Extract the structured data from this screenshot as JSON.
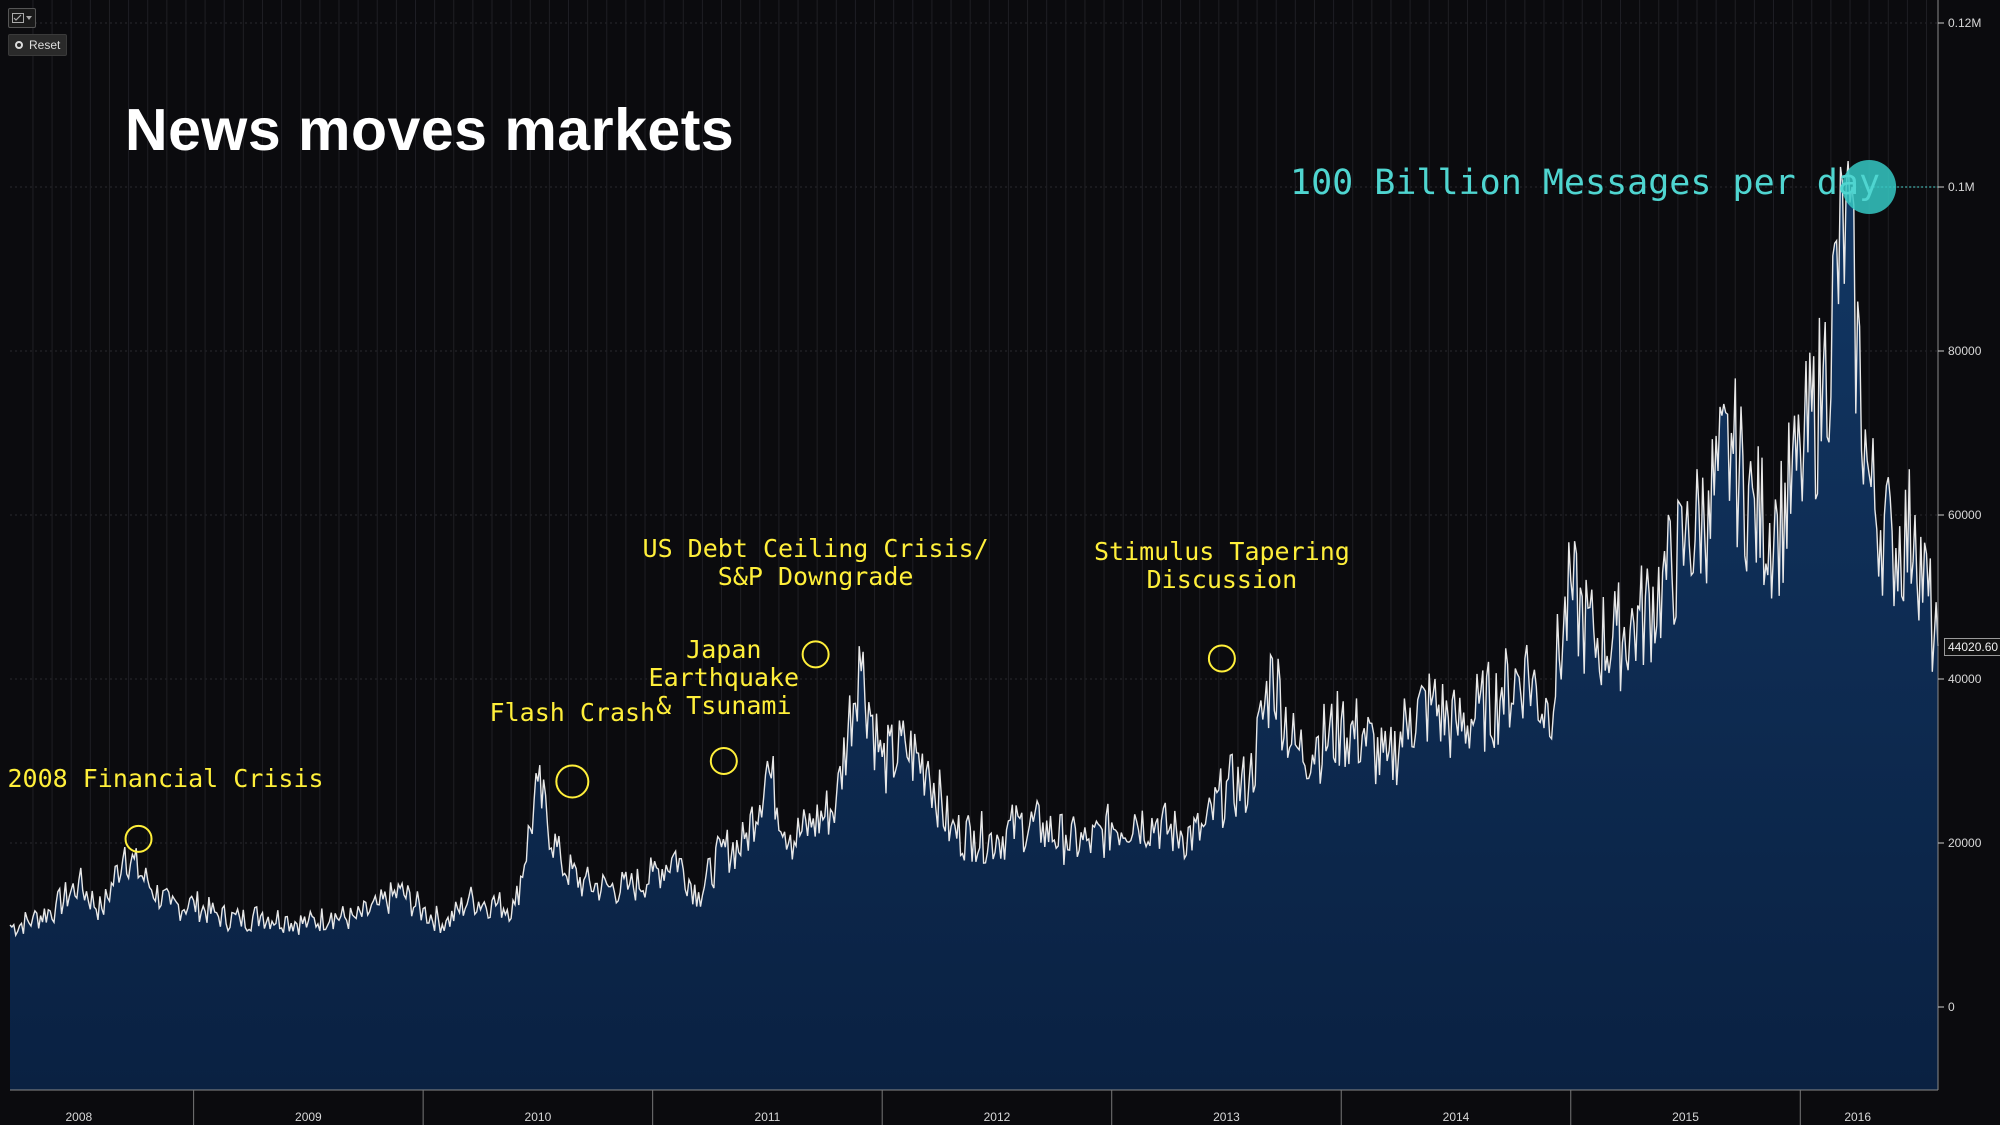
{
  "title": "News moves markets",
  "toolbar": {
    "toggle_icon": "chart-checkbox-icon",
    "reset_label": "Reset"
  },
  "chart_data": {
    "type": "area",
    "title": "News moves markets",
    "xlabel": "",
    "ylabel": "",
    "x_start": 2007.9,
    "x_end": 2016.3,
    "ylim": [
      -10000,
      120000
    ],
    "y_ticks": [
      {
        "value": 120000,
        "label": "0.12M"
      },
      {
        "value": 100000,
        "label": "0.1M"
      },
      {
        "value": 80000,
        "label": "80000"
      },
      {
        "value": 60000,
        "label": "60000"
      },
      {
        "value": 40000,
        "label": "40000"
      },
      {
        "value": 20000,
        "label": "20000"
      },
      {
        "value": 0,
        "label": "0"
      }
    ],
    "x_ticks": [
      {
        "value": 2008.2,
        "label": "2008"
      },
      {
        "value": 2009.2,
        "label": "2009"
      },
      {
        "value": 2010.2,
        "label": "2010"
      },
      {
        "value": 2011.2,
        "label": "2011"
      },
      {
        "value": 2012.2,
        "label": "2012"
      },
      {
        "value": 2013.2,
        "label": "2013"
      },
      {
        "value": 2014.2,
        "label": "2014"
      },
      {
        "value": 2015.2,
        "label": "2015"
      },
      {
        "value": 2015.95,
        "label": "2016"
      }
    ],
    "last_value_label": "44020.60",
    "grid": true,
    "series": [
      {
        "x": [
          2007.9,
          2008.0,
          2008.1,
          2008.2,
          2008.3,
          2008.4,
          2008.5,
          2008.6,
          2008.7,
          2008.8,
          2008.9,
          2009.0,
          2009.1,
          2009.2,
          2009.3,
          2009.4,
          2009.5,
          2009.6,
          2009.7,
          2009.8,
          2009.9,
          2010.0,
          2010.1,
          2010.2,
          2010.3,
          2010.4,
          2010.5,
          2010.6,
          2010.7,
          2010.8,
          2010.9,
          2011.0,
          2011.1,
          2011.2,
          2011.3,
          2011.4,
          2011.5,
          2011.6,
          2011.7,
          2011.8,
          2011.9,
          2012.0,
          2012.1,
          2012.2,
          2012.3,
          2012.4,
          2012.5,
          2012.6,
          2012.7,
          2012.8,
          2012.9,
          2013.0,
          2013.1,
          2013.2,
          2013.3,
          2013.4,
          2013.5,
          2013.6,
          2013.7,
          2013.8,
          2013.9,
          2014.0,
          2014.1,
          2014.2,
          2014.3,
          2014.4,
          2014.5,
          2014.6,
          2014.7,
          2014.8,
          2014.9,
          2015.0,
          2015.1,
          2015.2,
          2015.3,
          2015.4,
          2015.5,
          2015.6,
          2015.7,
          2015.8,
          2015.9,
          2016.0,
          2016.1,
          2016.2,
          2016.3
        ],
        "values": [
          10000,
          11000,
          12500,
          15500,
          12000,
          19500,
          15500,
          12500,
          13000,
          11500,
          11000,
          11500,
          11000,
          10500,
          11500,
          11000,
          12500,
          14500,
          12000,
          10500,
          13500,
          13000,
          12500,
          27500,
          18000,
          15500,
          15000,
          15000,
          16500,
          19000,
          14000,
          19500,
          20500,
          30000,
          21000,
          23000,
          25500,
          44000,
          30500,
          32500,
          30000,
          22000,
          21500,
          21000,
          23000,
          22500,
          21000,
          20500,
          22500,
          23500,
          23000,
          21500,
          22000,
          27500,
          28000,
          42500,
          32000,
          33000,
          35000,
          34000,
          30000,
          36500,
          38000,
          35000,
          37000,
          39000,
          42500,
          37000,
          52000,
          46000,
          46500,
          48500,
          53000,
          58000,
          63000,
          70000,
          62000,
          60000,
          68000,
          78000,
          100000,
          65000,
          58000,
          60000,
          44020
        ]
      }
    ],
    "annotations": [
      {
        "text": "2008 Financial Crisis",
        "x": 2008.46,
        "y": 20500
      },
      {
        "text": "Flash Crash",
        "x": 2010.35,
        "y": 27500
      },
      {
        "text": "Japan\nEarthquake\n& Tsunami",
        "x": 2011.01,
        "y": 30000
      },
      {
        "text": "US Debt Ceiling Crisis/\nS&P Downgrade",
        "x": 2011.41,
        "y": 43000
      },
      {
        "text": "Stimulus Tapering\nDiscussion",
        "x": 2013.18,
        "y": 42500
      }
    ],
    "highlight": {
      "text": "100 Billion Messages per day",
      "x": 2016.0,
      "y": 100000
    }
  }
}
